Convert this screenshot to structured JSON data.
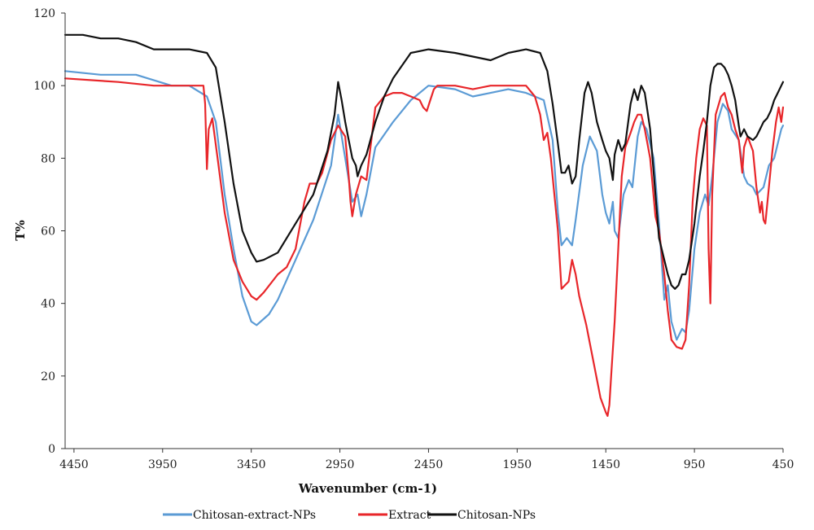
{
  "chart_data": {
    "type": "line",
    "title": "",
    "xlabel": "Wavenumber (cm-1)",
    "ylabel": "T%",
    "xlim": [
      4500,
      450
    ],
    "ylim": [
      0,
      120
    ],
    "x_reversed": true,
    "x_ticks": [
      4450,
      3950,
      3450,
      2950,
      2450,
      1950,
      1450,
      950,
      450
    ],
    "y_ticks": [
      0,
      20,
      40,
      60,
      80,
      100,
      120
    ],
    "grid": false,
    "legend_position": "bottom",
    "series": [
      {
        "name": "Chitosan-extract-NPs",
        "color": "#5b9bd5",
        "points": [
          [
            4500,
            104
          ],
          [
            4300,
            103
          ],
          [
            4100,
            103
          ],
          [
            3900,
            100
          ],
          [
            3800,
            100
          ],
          [
            3700,
            97
          ],
          [
            3650,
            90
          ],
          [
            3600,
            70
          ],
          [
            3550,
            55
          ],
          [
            3500,
            42
          ],
          [
            3450,
            35
          ],
          [
            3420,
            34
          ],
          [
            3350,
            37
          ],
          [
            3300,
            41
          ],
          [
            3200,
            52
          ],
          [
            3100,
            63
          ],
          [
            3000,
            78
          ],
          [
            2960,
            92
          ],
          [
            2920,
            80
          ],
          [
            2880,
            68
          ],
          [
            2850,
            70
          ],
          [
            2830,
            64
          ],
          [
            2800,
            70
          ],
          [
            2750,
            83
          ],
          [
            2650,
            90
          ],
          [
            2550,
            96
          ],
          [
            2450,
            100
          ],
          [
            2300,
            99
          ],
          [
            2200,
            97
          ],
          [
            2100,
            98
          ],
          [
            2000,
            99
          ],
          [
            1900,
            98
          ],
          [
            1800,
            96
          ],
          [
            1750,
            85
          ],
          [
            1720,
            65
          ],
          [
            1700,
            56
          ],
          [
            1670,
            58
          ],
          [
            1640,
            56
          ],
          [
            1620,
            63
          ],
          [
            1580,
            78
          ],
          [
            1540,
            86
          ],
          [
            1500,
            82
          ],
          [
            1470,
            70
          ],
          [
            1450,
            65
          ],
          [
            1430,
            62
          ],
          [
            1410,
            68
          ],
          [
            1400,
            60
          ],
          [
            1380,
            58
          ],
          [
            1350,
            70
          ],
          [
            1320,
            74
          ],
          [
            1300,
            72
          ],
          [
            1270,
            86
          ],
          [
            1250,
            90
          ],
          [
            1220,
            88
          ],
          [
            1180,
            80
          ],
          [
            1150,
            62
          ],
          [
            1120,
            41
          ],
          [
            1100,
            45
          ],
          [
            1080,
            35
          ],
          [
            1050,
            30
          ],
          [
            1020,
            33
          ],
          [
            1000,
            32
          ],
          [
            980,
            38
          ],
          [
            950,
            55
          ],
          [
            920,
            65
          ],
          [
            890,
            70
          ],
          [
            870,
            67
          ],
          [
            850,
            75
          ],
          [
            820,
            90
          ],
          [
            790,
            95
          ],
          [
            760,
            93
          ],
          [
            740,
            88
          ],
          [
            700,
            85
          ],
          [
            670,
            75
          ],
          [
            650,
            73
          ],
          [
            620,
            72
          ],
          [
            600,
            70
          ],
          [
            560,
            72
          ],
          [
            530,
            78
          ],
          [
            500,
            80
          ],
          [
            460,
            88
          ],
          [
            450,
            89
          ]
        ]
      },
      {
        "name": "Extract",
        "color": "#e8262a",
        "points": [
          [
            4500,
            102
          ],
          [
            4200,
            101
          ],
          [
            4000,
            100
          ],
          [
            3800,
            100
          ],
          [
            3720,
            100
          ],
          [
            3710,
            95
          ],
          [
            3700,
            77
          ],
          [
            3690,
            88
          ],
          [
            3670,
            91
          ],
          [
            3640,
            80
          ],
          [
            3600,
            65
          ],
          [
            3550,
            52
          ],
          [
            3500,
            46
          ],
          [
            3450,
            42
          ],
          [
            3420,
            41
          ],
          [
            3380,
            43
          ],
          [
            3300,
            48
          ],
          [
            3250,
            50
          ],
          [
            3200,
            55
          ],
          [
            3150,
            68
          ],
          [
            3120,
            73
          ],
          [
            3080,
            73
          ],
          [
            3050,
            76
          ],
          [
            3000,
            85
          ],
          [
            2960,
            89
          ],
          [
            2920,
            86
          ],
          [
            2900,
            75
          ],
          [
            2890,
            68
          ],
          [
            2880,
            64
          ],
          [
            2860,
            70
          ],
          [
            2830,
            75
          ],
          [
            2800,
            74
          ],
          [
            2780,
            82
          ],
          [
            2750,
            94
          ],
          [
            2700,
            97
          ],
          [
            2650,
            98
          ],
          [
            2600,
            98
          ],
          [
            2550,
            97
          ],
          [
            2500,
            96
          ],
          [
            2480,
            94
          ],
          [
            2460,
            93
          ],
          [
            2440,
            96
          ],
          [
            2420,
            99
          ],
          [
            2400,
            100
          ],
          [
            2300,
            100
          ],
          [
            2200,
            99
          ],
          [
            2100,
            100
          ],
          [
            2000,
            100
          ],
          [
            1900,
            100
          ],
          [
            1850,
            97
          ],
          [
            1820,
            92
          ],
          [
            1800,
            85
          ],
          [
            1780,
            87
          ],
          [
            1760,
            80
          ],
          [
            1720,
            60
          ],
          [
            1700,
            44
          ],
          [
            1680,
            45
          ],
          [
            1660,
            46
          ],
          [
            1640,
            52
          ],
          [
            1620,
            48
          ],
          [
            1600,
            42
          ],
          [
            1560,
            34
          ],
          [
            1520,
            24
          ],
          [
            1480,
            14
          ],
          [
            1450,
            10
          ],
          [
            1440,
            9
          ],
          [
            1430,
            12
          ],
          [
            1420,
            20
          ],
          [
            1400,
            35
          ],
          [
            1380,
            55
          ],
          [
            1360,
            75
          ],
          [
            1340,
            83
          ],
          [
            1310,
            87
          ],
          [
            1290,
            90
          ],
          [
            1270,
            92
          ],
          [
            1250,
            92
          ],
          [
            1230,
            88
          ],
          [
            1200,
            80
          ],
          [
            1170,
            64
          ],
          [
            1150,
            60
          ],
          [
            1120,
            48
          ],
          [
            1100,
            38
          ],
          [
            1080,
            30
          ],
          [
            1050,
            28
          ],
          [
            1020,
            27.5
          ],
          [
            1000,
            30
          ],
          [
            980,
            45
          ],
          [
            960,
            68
          ],
          [
            940,
            80
          ],
          [
            920,
            88
          ],
          [
            900,
            91
          ],
          [
            880,
            89
          ],
          [
            870,
            55
          ],
          [
            860,
            40
          ],
          [
            850,
            70
          ],
          [
            830,
            92
          ],
          [
            800,
            97
          ],
          [
            780,
            98
          ],
          [
            760,
            94
          ],
          [
            740,
            92
          ],
          [
            720,
            88
          ],
          [
            700,
            85
          ],
          [
            680,
            76
          ],
          [
            670,
            83
          ],
          [
            650,
            86
          ],
          [
            620,
            82
          ],
          [
            600,
            72
          ],
          [
            580,
            65
          ],
          [
            570,
            68
          ],
          [
            560,
            63
          ],
          [
            550,
            62
          ],
          [
            530,
            72
          ],
          [
            510,
            82
          ],
          [
            490,
            90
          ],
          [
            475,
            94
          ],
          [
            460,
            90
          ],
          [
            450,
            94
          ]
        ]
      },
      {
        "name": "Chitosan-NPs",
        "color": "#111111",
        "points": [
          [
            4500,
            114
          ],
          [
            4400,
            114
          ],
          [
            4300,
            113
          ],
          [
            4200,
            113
          ],
          [
            4100,
            112
          ],
          [
            4000,
            110
          ],
          [
            3900,
            110
          ],
          [
            3800,
            110
          ],
          [
            3700,
            109
          ],
          [
            3650,
            105
          ],
          [
            3600,
            90
          ],
          [
            3550,
            73
          ],
          [
            3500,
            60
          ],
          [
            3450,
            54
          ],
          [
            3420,
            51.5
          ],
          [
            3380,
            52
          ],
          [
            3300,
            54
          ],
          [
            3250,
            58
          ],
          [
            3200,
            62
          ],
          [
            3100,
            70
          ],
          [
            3020,
            82
          ],
          [
            2980,
            92
          ],
          [
            2960,
            101
          ],
          [
            2940,
            96
          ],
          [
            2920,
            90
          ],
          [
            2900,
            85
          ],
          [
            2880,
            80
          ],
          [
            2860,
            78
          ],
          [
            2850,
            75
          ],
          [
            2830,
            78
          ],
          [
            2800,
            81
          ],
          [
            2750,
            90
          ],
          [
            2700,
            97
          ],
          [
            2650,
            102
          ],
          [
            2550,
            109
          ],
          [
            2450,
            110
          ],
          [
            2300,
            109
          ],
          [
            2200,
            108
          ],
          [
            2100,
            107
          ],
          [
            2000,
            109
          ],
          [
            1900,
            110
          ],
          [
            1820,
            109
          ],
          [
            1780,
            104
          ],
          [
            1750,
            95
          ],
          [
            1720,
            84
          ],
          [
            1700,
            76
          ],
          [
            1680,
            76
          ],
          [
            1660,
            78
          ],
          [
            1640,
            73
          ],
          [
            1620,
            75
          ],
          [
            1600,
            85
          ],
          [
            1570,
            98
          ],
          [
            1550,
            101
          ],
          [
            1530,
            98
          ],
          [
            1500,
            90
          ],
          [
            1470,
            85
          ],
          [
            1450,
            82
          ],
          [
            1430,
            80
          ],
          [
            1410,
            74
          ],
          [
            1400,
            81
          ],
          [
            1380,
            85
          ],
          [
            1360,
            82
          ],
          [
            1340,
            84
          ],
          [
            1310,
            95
          ],
          [
            1290,
            99
          ],
          [
            1270,
            96
          ],
          [
            1250,
            100
          ],
          [
            1230,
            98
          ],
          [
            1200,
            88
          ],
          [
            1170,
            70
          ],
          [
            1150,
            58
          ],
          [
            1120,
            52
          ],
          [
            1100,
            48
          ],
          [
            1080,
            45
          ],
          [
            1060,
            44
          ],
          [
            1040,
            45
          ],
          [
            1020,
            48
          ],
          [
            1000,
            48
          ],
          [
            980,
            52
          ],
          [
            950,
            62
          ],
          [
            920,
            75
          ],
          [
            900,
            82
          ],
          [
            880,
            90
          ],
          [
            860,
            100
          ],
          [
            840,
            105
          ],
          [
            820,
            106
          ],
          [
            800,
            106
          ],
          [
            780,
            105
          ],
          [
            760,
            103
          ],
          [
            740,
            100
          ],
          [
            720,
            96
          ],
          [
            700,
            89
          ],
          [
            690,
            86
          ],
          [
            670,
            88
          ],
          [
            650,
            86
          ],
          [
            620,
            85
          ],
          [
            600,
            86
          ],
          [
            580,
            88
          ],
          [
            560,
            90
          ],
          [
            540,
            91
          ],
          [
            520,
            93
          ],
          [
            500,
            96
          ],
          [
            480,
            98
          ],
          [
            460,
            100
          ],
          [
            450,
            101
          ]
        ]
      }
    ]
  }
}
